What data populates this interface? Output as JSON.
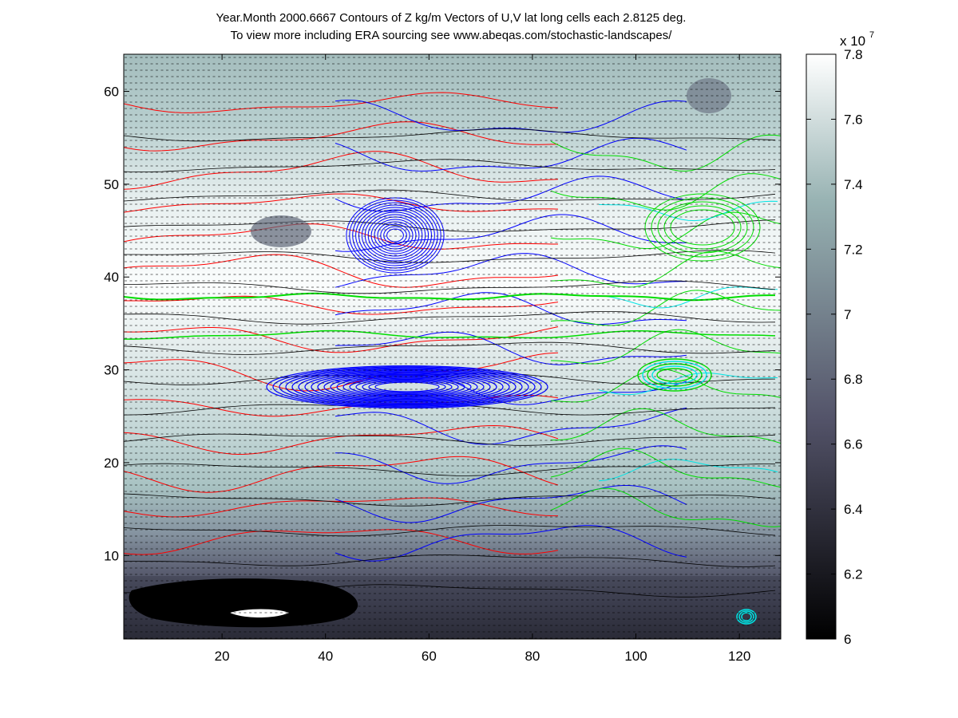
{
  "title_lines": [
    "Year.Month  2000.6667  Contours of Z kg/m  Vectors of U,V  lat long cells each 2.8125 deg.",
    "To view more including ERA sourcing see www.abeqas.com/stochastic-landscapes/"
  ],
  "chart_data": {
    "type": "heatmap",
    "title": "Year.Month  2000.6667  Contours of Z kg/m  Vectors of U,V  lat long cells each 2.8125 deg.",
    "subtitle": "To view more including ERA sourcing see www.abeqas.com/stochastic-landscapes/",
    "x_ticks": [
      20,
      40,
      60,
      80,
      100,
      120
    ],
    "y_ticks": [
      10,
      20,
      30,
      40,
      50,
      60
    ],
    "xlim": [
      1,
      128
    ],
    "ylim": [
      1,
      64
    ],
    "grid": false,
    "colormap": "bone",
    "colorbar": {
      "exponent_label": "x 10",
      "exponent_power": "7",
      "ticks": [
        "6",
        "6.2",
        "6.4",
        "6.6",
        "6.8",
        "7",
        "7.2",
        "7.4",
        "7.6",
        "7.8"
      ],
      "range": [
        6.0,
        7.8
      ]
    },
    "contour_colors": {
      "red": "#ff0000",
      "blue": "#0000ff",
      "green": "#00dd00",
      "cyan": "#00e5e5",
      "black": "#000000"
    }
  }
}
